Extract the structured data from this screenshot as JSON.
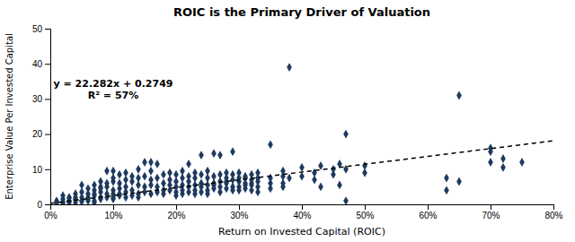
{
  "chart_data": {
    "type": "scatter",
    "title": "ROIC is the Primary Driver of Valuation",
    "xlabel": "Return on Invested Capital (ROIC)",
    "ylabel": "Enterprise Value Per Invested Capital",
    "annotations": [
      "y = 22.282x + 0.2749",
      "R² = 57%"
    ],
    "xlim": [
      0,
      0.8
    ],
    "ylim": [
      0,
      50
    ],
    "xticks": [
      {
        "value": 0.0,
        "label": "0%"
      },
      {
        "value": 0.1,
        "label": "10%"
      },
      {
        "value": 0.2,
        "label": "20%"
      },
      {
        "value": 0.3,
        "label": "30%"
      },
      {
        "value": 0.4,
        "label": "40%"
      },
      {
        "value": 0.5,
        "label": "50%"
      },
      {
        "value": 0.6,
        "label": "60%"
      },
      {
        "value": 0.7,
        "label": "70%"
      },
      {
        "value": 0.8,
        "label": "80%"
      }
    ],
    "yticks": [
      0,
      10,
      20,
      30,
      40,
      50
    ],
    "grid": false,
    "series": [
      {
        "type": "scatter",
        "color": "#1f3a5f",
        "marker": "diamond",
        "x": [
          0.01,
          0.01,
          0.02,
          0.02,
          0.02,
          0.02,
          0.03,
          0.03,
          0.03,
          0.03,
          0.03,
          0.04,
          0.04,
          0.04,
          0.04,
          0.04,
          0.05,
          0.05,
          0.05,
          0.05,
          0.05,
          0.06,
          0.06,
          0.06,
          0.06,
          0.06,
          0.07,
          0.07,
          0.07,
          0.07,
          0.07,
          0.07,
          0.08,
          0.08,
          0.08,
          0.08,
          0.08,
          0.08,
          0.09,
          0.09,
          0.09,
          0.09,
          0.09,
          0.1,
          0.1,
          0.1,
          0.1,
          0.1,
          0.1,
          0.1,
          0.11,
          0.11,
          0.11,
          0.11,
          0.11,
          0.12,
          0.12,
          0.12,
          0.12,
          0.12,
          0.13,
          0.13,
          0.13,
          0.13,
          0.14,
          0.14,
          0.14,
          0.14,
          0.14,
          0.15,
          0.15,
          0.15,
          0.15,
          0.16,
          0.16,
          0.16,
          0.16,
          0.16,
          0.17,
          0.17,
          0.17,
          0.17,
          0.18,
          0.18,
          0.18,
          0.18,
          0.19,
          0.19,
          0.19,
          0.19,
          0.2,
          0.2,
          0.2,
          0.2,
          0.2,
          0.21,
          0.21,
          0.21,
          0.21,
          0.21,
          0.22,
          0.22,
          0.22,
          0.22,
          0.22,
          0.23,
          0.23,
          0.23,
          0.23,
          0.23,
          0.24,
          0.24,
          0.24,
          0.24,
          0.24,
          0.25,
          0.25,
          0.25,
          0.25,
          0.25,
          0.26,
          0.26,
          0.26,
          0.26,
          0.26,
          0.27,
          0.27,
          0.27,
          0.27,
          0.27,
          0.28,
          0.28,
          0.28,
          0.28,
          0.28,
          0.29,
          0.29,
          0.29,
          0.29,
          0.29,
          0.3,
          0.3,
          0.3,
          0.3,
          0.3,
          0.31,
          0.31,
          0.31,
          0.31,
          0.31,
          0.32,
          0.32,
          0.32,
          0.32,
          0.32,
          0.33,
          0.33,
          0.33,
          0.33,
          0.33,
          0.35,
          0.35,
          0.35,
          0.35,
          0.37,
          0.37,
          0.37,
          0.37,
          0.38,
          0.38,
          0.4,
          0.4,
          0.42,
          0.42,
          0.43,
          0.43,
          0.45,
          0.45,
          0.46,
          0.46,
          0.47,
          0.47,
          0.47,
          0.5,
          0.5,
          0.63,
          0.63,
          0.65,
          0.65,
          0.7,
          0.7,
          0.7,
          0.72,
          0.72,
          0.75
        ],
        "values": [
          0.5,
          1.0,
          0.8,
          1.5,
          2.5,
          0.3,
          0.5,
          1.0,
          1.8,
          2.0,
          0.8,
          1.2,
          2.0,
          0.5,
          3.0,
          1.5,
          2.0,
          1.0,
          3.5,
          0.8,
          5.5,
          3.0,
          1.5,
          4.5,
          2.0,
          1.0,
          2.5,
          4.0,
          1.0,
          3.0,
          5.5,
          0.5,
          3.5,
          5.0,
          1.5,
          2.0,
          6.5,
          4.5,
          5.0,
          9.5,
          3.0,
          2.0,
          6.0,
          4.0,
          3.0,
          6.5,
          2.0,
          9.5,
          1.5,
          7.5,
          4.5,
          3.0,
          6.0,
          2.5,
          8.5,
          5.0,
          3.5,
          7.0,
          2.0,
          9.0,
          4.0,
          6.5,
          2.5,
          8.0,
          5.5,
          3.0,
          7.5,
          2.0,
          10.0,
          5.0,
          3.5,
          8.0,
          12.0,
          5.5,
          3.0,
          7.0,
          9.5,
          12.0,
          5.0,
          3.5,
          7.5,
          11.5,
          6.0,
          4.0,
          8.5,
          3.0,
          5.5,
          4.0,
          7.0,
          9.0,
          5.0,
          3.5,
          6.5,
          8.5,
          2.5,
          5.5,
          4.0,
          7.5,
          9.5,
          3.0,
          5.0,
          3.5,
          6.5,
          8.0,
          11.5,
          5.5,
          4.0,
          7.5,
          9.0,
          3.0,
          5.0,
          3.5,
          6.0,
          8.5,
          14.0,
          5.5,
          4.0,
          7.5,
          9.5,
          3.0,
          6.0,
          4.5,
          8.0,
          5.5,
          14.5,
          6.5,
          5.0,
          8.5,
          3.5,
          14.0,
          6.0,
          4.5,
          7.5,
          9.0,
          6.5,
          7.0,
          5.0,
          8.5,
          4.0,
          15.0,
          6.5,
          5.0,
          7.5,
          9.0,
          4.0,
          6.0,
          4.5,
          7.5,
          5.5,
          8.0,
          7.0,
          5.5,
          8.5,
          4.0,
          6.0,
          6.5,
          5.0,
          7.5,
          9.0,
          3.5,
          6.0,
          7.5,
          17.0,
          4.5,
          8.0,
          6.0,
          9.5,
          5.0,
          39.0,
          7.5,
          10.5,
          8.0,
          9.0,
          7.0,
          11.0,
          5.0,
          10.0,
          8.5,
          11.5,
          5.5,
          20.0,
          10.0,
          1.0,
          11.0,
          9.0,
          4.0,
          7.5,
          31.0,
          6.5,
          16.0,
          12.0,
          15.0,
          13.0,
          10.5,
          12.0
        ]
      },
      {
        "type": "line",
        "color": "#000000",
        "line_style": "dashed",
        "x": [
          0.0,
          0.8
        ],
        "values": [
          0.2749,
          18.1005
        ]
      }
    ]
  }
}
